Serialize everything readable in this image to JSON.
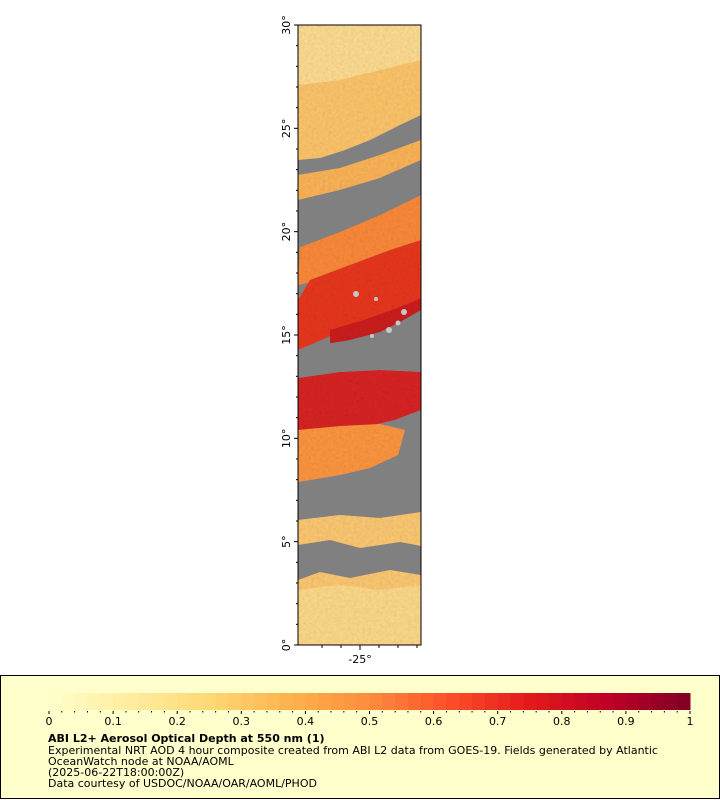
{
  "map": {
    "lat_ticks": [
      "0°",
      "5°",
      "10°",
      "15°",
      "20°",
      "25°",
      "30°"
    ],
    "lon_ticks": [
      "-25°"
    ],
    "lat_range": [
      0,
      30
    ],
    "no_data_color": "#808080"
  },
  "legend": {
    "min": 0,
    "max": 1,
    "tick_labels": [
      "0",
      "0.1",
      "0.2",
      "0.3",
      "0.4",
      "0.5",
      "0.6",
      "0.7",
      "0.8",
      "0.9",
      "1"
    ],
    "colors": [
      "#ffffcc",
      "#ffeda0",
      "#fed976",
      "#feb24c",
      "#fd8d3c",
      "#fc4e2a",
      "#e31a1c",
      "#bd0026",
      "#800026"
    ],
    "background": "#ffffcc"
  },
  "caption": {
    "title": "ABI L2+ Aerosol Optical Depth at 550 nm (1)",
    "line1": "Experimental NRT AOD 4 hour composite created from ABI L2 data from GOES-19. Fields generated by Atlantic",
    "line2": "OceanWatch node at NOAA/AOML",
    "line3": "(2025-06-22T18:00:00Z)",
    "line4": "Data courtesy of USDOC/NOAA/OAR/AOML/PHOD"
  }
}
